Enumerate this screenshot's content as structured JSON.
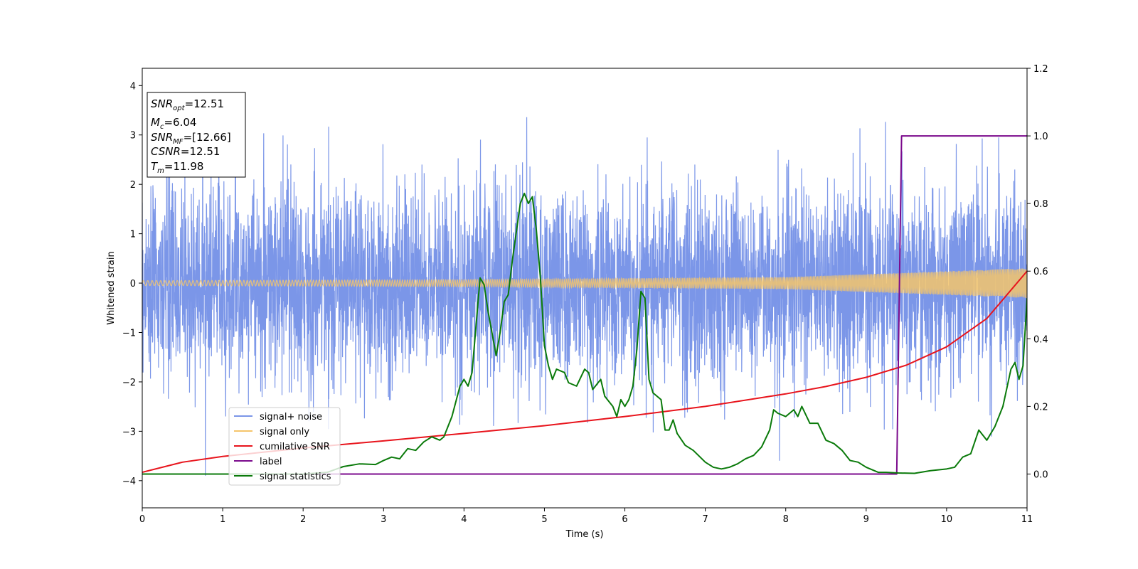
{
  "chart_data": {
    "type": "line",
    "xlabel": "Time (s)",
    "ylabel": "Whitened strain",
    "xlim": [
      0,
      11
    ],
    "ylim": [
      -4.55,
      4.35
    ],
    "y2lim": [
      -0.1,
      1.2
    ],
    "xticks": [
      0,
      1,
      2,
      3,
      4,
      5,
      6,
      7,
      8,
      9,
      10,
      11
    ],
    "yticks": [
      -4,
      -3,
      -2,
      -1,
      0,
      1,
      2,
      3,
      4
    ],
    "y2ticks": [
      0.0,
      0.2,
      0.4,
      0.6,
      0.8,
      1.0,
      1.2
    ],
    "y2tick_labels": [
      "0.0",
      "0.2",
      "0.4",
      "0.6",
      "0.8",
      "1.0",
      "1.2"
    ],
    "grid": false,
    "legend": {
      "position": "lower-left"
    },
    "annotation": {
      "lines": [
        {
          "sym": "SNR",
          "sub": "opt",
          "value": "=12.51"
        },
        {
          "sym": "M",
          "sub": "c",
          "value": "=6.04"
        },
        {
          "sym": "SNR",
          "sub": "MF",
          "value": "=[12.66]"
        },
        {
          "sym": "CSNR",
          "sub": "",
          "value": "=12.51"
        },
        {
          "sym": "T",
          "sub": "m",
          "value": "=11.98"
        }
      ]
    },
    "series": [
      {
        "name": "signal+ noise",
        "color": "#7b96e8",
        "axis": "left",
        "noise_envelope": {
          "typical_amplitude": 1.0,
          "max_excursion": 3.9
        }
      },
      {
        "name": "signal only",
        "color": "#f5c56b",
        "axis": "left",
        "amplitude_envelope": {
          "x": [
            0,
            4,
            8,
            11
          ],
          "y": [
            0.05,
            0.07,
            0.12,
            0.3
          ]
        }
      },
      {
        "name": "cumilative SNR",
        "color": "#e8141c",
        "axis": "right",
        "x": [
          0,
          0.5,
          1,
          2,
          3,
          4,
          5,
          6,
          7,
          8,
          8.5,
          9,
          9.5,
          10,
          10.5,
          11
        ],
        "y": [
          0.005,
          0.035,
          0.052,
          0.077,
          0.098,
          0.12,
          0.143,
          0.17,
          0.2,
          0.237,
          0.259,
          0.286,
          0.322,
          0.376,
          0.46,
          0.6
        ]
      },
      {
        "name": "label",
        "color": "#7b0a8c",
        "axis": "right",
        "x": [
          0,
          9.38,
          9.44,
          11
        ],
        "y": [
          0,
          0,
          1,
          1
        ]
      },
      {
        "name": "signal statistics",
        "color": "#0a7a0a",
        "axis": "right",
        "x": [
          0,
          0.5,
          1,
          1.5,
          2,
          2.3,
          2.5,
          2.7,
          2.9,
          3.0,
          3.1,
          3.2,
          3.3,
          3.4,
          3.5,
          3.6,
          3.7,
          3.75,
          3.85,
          3.95,
          4.0,
          4.05,
          4.1,
          4.15,
          4.2,
          4.25,
          4.3,
          4.4,
          4.45,
          4.5,
          4.55,
          4.6,
          4.7,
          4.75,
          4.8,
          4.85,
          4.9,
          4.95,
          5.0,
          5.05,
          5.1,
          5.15,
          5.25,
          5.3,
          5.4,
          5.5,
          5.55,
          5.6,
          5.7,
          5.75,
          5.85,
          5.9,
          5.95,
          6.0,
          6.05,
          6.1,
          6.15,
          6.2,
          6.25,
          6.3,
          6.35,
          6.45,
          6.5,
          6.55,
          6.6,
          6.65,
          6.75,
          6.85,
          7.0,
          7.1,
          7.2,
          7.3,
          7.4,
          7.5,
          7.6,
          7.7,
          7.8,
          7.85,
          7.9,
          8.0,
          8.05,
          8.1,
          8.15,
          8.2,
          8.3,
          8.4,
          8.5,
          8.6,
          8.7,
          8.8,
          8.9,
          9.0,
          9.1,
          9.15,
          9.25,
          9.4,
          9.6,
          9.8,
          10.0,
          10.1,
          10.2,
          10.3,
          10.4,
          10.5,
          10.6,
          10.7,
          10.8,
          10.85,
          10.9,
          10.95,
          11.0
        ],
        "y": [
          0.0,
          0.0,
          0.0,
          0.0,
          0.0,
          0.005,
          0.022,
          0.03,
          0.028,
          0.04,
          0.05,
          0.045,
          0.075,
          0.07,
          0.095,
          0.11,
          0.1,
          0.11,
          0.17,
          0.26,
          0.28,
          0.26,
          0.3,
          0.44,
          0.58,
          0.56,
          0.48,
          0.35,
          0.42,
          0.51,
          0.53,
          0.63,
          0.8,
          0.83,
          0.8,
          0.82,
          0.72,
          0.58,
          0.38,
          0.32,
          0.28,
          0.31,
          0.3,
          0.27,
          0.26,
          0.31,
          0.3,
          0.25,
          0.28,
          0.23,
          0.2,
          0.17,
          0.22,
          0.2,
          0.22,
          0.26,
          0.37,
          0.54,
          0.52,
          0.28,
          0.24,
          0.22,
          0.13,
          0.13,
          0.16,
          0.12,
          0.085,
          0.07,
          0.035,
          0.02,
          0.015,
          0.02,
          0.03,
          0.045,
          0.055,
          0.08,
          0.13,
          0.19,
          0.18,
          0.17,
          0.18,
          0.19,
          0.17,
          0.2,
          0.15,
          0.15,
          0.1,
          0.09,
          0.07,
          0.04,
          0.035,
          0.02,
          0.01,
          0.005,
          0.005,
          0.003,
          0.002,
          0.01,
          0.015,
          0.02,
          0.05,
          0.06,
          0.13,
          0.1,
          0.14,
          0.2,
          0.31,
          0.33,
          0.28,
          0.32,
          0.52
        ]
      }
    ]
  }
}
